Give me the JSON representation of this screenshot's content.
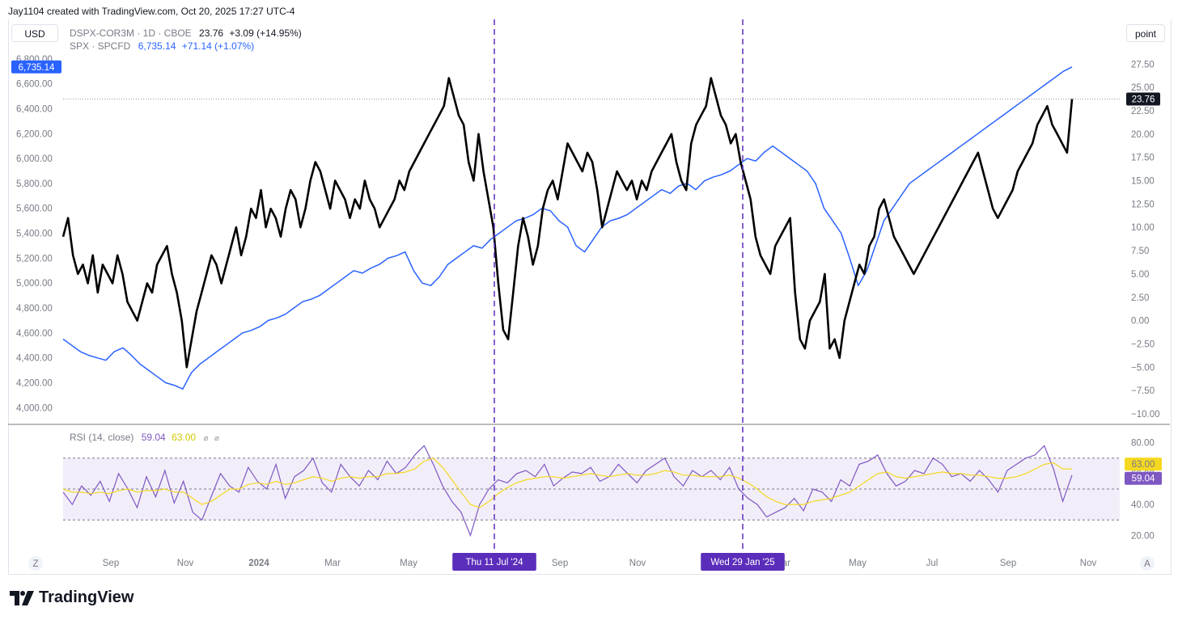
{
  "credit": "Jay1104 created with TradingView.com, Oct 20, 2025 17:27 UTC-4",
  "buttons": {
    "currency": "USD",
    "scale": "point",
    "zoom": "Z",
    "auto": "A"
  },
  "legend": {
    "series1": {
      "symbol": "DSPX-COR3M · 1D · CBOE",
      "value": "23.76",
      "change": "+3.09 (+14.95%)"
    },
    "series2": {
      "symbol": "SPX · SPCFD",
      "value": "6,735.14",
      "change": "+71.14 (+1.07%)"
    }
  },
  "rsi_legend": {
    "name": "RSI (14, close)",
    "value": "59.04",
    "ma": "63.00"
  },
  "logo_text": "TradingView",
  "colors": {
    "dspx": "#000000",
    "spx": "#2962ff",
    "rsi": "#7e57c2",
    "rsi_ma": "#f5d820",
    "marker": "#5b2dbb",
    "band": "#7e57c2"
  },
  "chart_data": [
    {
      "type": "line",
      "left_axis": {
        "ticks": [
          "6,800.00",
          "6,600.00",
          "6,400.00",
          "6,200.00",
          "6,000.00",
          "5,800.00",
          "5,600.00",
          "5,400.00",
          "5,200.00",
          "5,000.00",
          "4,800.00",
          "4,600.00",
          "4,400.00",
          "4,200.00",
          "4,000.00"
        ],
        "range": [
          3950,
          6870
        ]
      },
      "right_axis": {
        "ticks": [
          "27.50",
          "25.00",
          "22.50",
          "20.00",
          "17.50",
          "15.00",
          "12.50",
          "10.00",
          "7.50",
          "5.00",
          "2.50",
          "0.00",
          "−2.50",
          "−5.00",
          "−7.50",
          "−10.00"
        ],
        "range": [
          -10,
          29
        ]
      },
      "x_ticks": [
        "Sep",
        "Nov",
        "2024",
        "Mar",
        "May",
        "Sep",
        "Nov",
        "Mar",
        "May",
        "Jul",
        "Sep",
        "Nov"
      ],
      "markers": [
        "Thu 11 Jul '24",
        "Wed 29 Jan '25"
      ],
      "last_values": {
        "spx": "6,735.14",
        "dspx": "23.76"
      },
      "series": [
        {
          "name": "DSPX-COR3M",
          "axis": "right",
          "values": [
            9,
            11,
            7,
            5,
            6,
            4,
            7,
            3,
            6,
            5,
            4,
            7,
            5,
            2,
            1,
            0,
            2,
            4,
            3,
            6,
            7,
            8,
            5,
            3,
            0,
            -5,
            -2,
            1,
            3,
            5,
            7,
            6,
            4,
            6,
            8,
            10,
            7,
            9,
            12,
            11,
            14,
            10,
            12,
            11,
            9,
            12,
            14,
            13,
            10,
            12,
            15,
            17,
            16,
            14,
            12,
            15,
            14,
            13,
            11,
            13,
            12,
            15,
            13,
            12,
            10,
            11,
            12,
            13,
            15,
            14,
            16,
            17,
            18,
            19,
            20,
            21,
            22,
            23,
            26,
            24,
            22,
            21,
            17,
            15,
            20,
            16,
            13,
            10,
            4,
            -1,
            -2,
            3,
            8,
            11,
            9,
            6,
            8,
            12,
            14,
            15,
            13,
            16,
            19,
            18,
            17,
            16,
            18,
            17,
            14,
            10,
            12,
            14,
            16,
            15,
            14,
            15,
            13,
            15,
            14,
            16,
            17,
            18,
            19,
            20,
            17,
            15,
            14,
            19,
            21,
            22,
            23,
            26,
            24,
            22,
            21,
            19,
            20,
            17,
            15,
            13,
            9,
            7,
            6,
            5,
            8,
            9,
            10,
            11,
            3,
            -2,
            -3,
            0,
            1,
            2,
            5,
            -3,
            -2,
            -4,
            0,
            2,
            4,
            6,
            5,
            8,
            9,
            12,
            13,
            11,
            9,
            8,
            7,
            6,
            5,
            6,
            7,
            8,
            9,
            10,
            11,
            12,
            13,
            14,
            15,
            16,
            17,
            18,
            16,
            14,
            12,
            11,
            12,
            13,
            14,
            16,
            17,
            18,
            19,
            21,
            22,
            23,
            21,
            20,
            19,
            18,
            23.76
          ]
        },
        {
          "name": "SPX",
          "axis": "left",
          "values": [
            4550,
            4500,
            4450,
            4420,
            4400,
            4380,
            4450,
            4480,
            4420,
            4350,
            4300,
            4250,
            4200,
            4180,
            4150,
            4280,
            4350,
            4400,
            4450,
            4500,
            4550,
            4600,
            4620,
            4650,
            4700,
            4720,
            4750,
            4800,
            4850,
            4870,
            4900,
            4950,
            5000,
            5050,
            5100,
            5080,
            5120,
            5150,
            5200,
            5220,
            5250,
            5100,
            5000,
            4980,
            5050,
            5150,
            5200,
            5250,
            5300,
            5280,
            5350,
            5400,
            5450,
            5500,
            5520,
            5550,
            5600,
            5580,
            5500,
            5450,
            5300,
            5250,
            5350,
            5450,
            5500,
            5520,
            5550,
            5600,
            5650,
            5700,
            5750,
            5720,
            5780,
            5800,
            5750,
            5820,
            5850,
            5870,
            5900,
            5950,
            6000,
            5980,
            6050,
            6100,
            6050,
            6000,
            5950,
            5900,
            5800,
            5600,
            5500,
            5400,
            5200,
            4980,
            5100,
            5300,
            5500,
            5600,
            5700,
            5800,
            5850,
            5900,
            5950,
            6000,
            6050,
            6100,
            6150,
            6200,
            6250,
            6300,
            6350,
            6400,
            6450,
            6500,
            6550,
            6600,
            6650,
            6700,
            6735.14
          ]
        }
      ]
    },
    {
      "type": "line",
      "title": "RSI (14, close)",
      "y_ticks": [
        "80.00",
        "60.00",
        "40.00",
        "20.00"
      ],
      "ylim": [
        15,
        85
      ],
      "band": [
        30,
        70
      ],
      "last_values": {
        "ma": "63.00",
        "rsi": "59.04"
      },
      "series": [
        {
          "name": "RSI",
          "values": [
            48,
            40,
            52,
            46,
            55,
            42,
            60,
            50,
            38,
            58,
            45,
            62,
            41,
            55,
            35,
            30,
            45,
            60,
            52,
            48,
            64,
            55,
            50,
            66,
            44,
            58,
            62,
            70,
            54,
            48,
            66,
            58,
            52,
            62,
            56,
            68,
            60,
            64,
            72,
            78,
            66,
            52,
            42,
            35,
            20,
            40,
            50,
            56,
            54,
            60,
            62,
            58,
            66,
            52,
            57,
            61,
            60,
            64,
            55,
            58,
            66,
            60,
            54,
            62,
            66,
            70,
            58,
            52,
            62,
            58,
            62,
            56,
            64,
            50,
            44,
            40,
            32,
            35,
            38,
            44,
            36,
            50,
            48,
            42,
            56,
            52,
            66,
            68,
            72,
            60,
            52,
            55,
            62,
            60,
            70,
            66,
            58,
            60,
            55,
            62,
            56,
            48,
            62,
            66,
            70,
            72,
            78,
            63,
            42,
            59.04
          ]
        },
        {
          "name": "MA",
          "values": [
            50,
            48,
            48,
            47,
            48,
            47,
            49,
            50,
            48,
            49,
            49,
            50,
            48,
            48,
            44,
            40,
            42,
            46,
            50,
            50,
            53,
            54,
            53,
            55,
            53,
            54,
            56,
            58,
            57,
            55,
            57,
            58,
            57,
            58,
            58,
            60,
            60,
            61,
            63,
            68,
            70,
            64,
            56,
            48,
            40,
            38,
            42,
            47,
            51,
            54,
            56,
            57,
            58,
            58,
            57,
            58,
            59,
            60,
            59,
            58,
            59,
            60,
            59,
            59,
            60,
            62,
            61,
            59,
            59,
            58,
            58,
            58,
            59,
            57,
            54,
            50,
            45,
            42,
            40,
            40,
            40,
            42,
            43,
            44,
            46,
            48,
            52,
            56,
            60,
            61,
            58,
            57,
            58,
            59,
            60,
            61,
            60,
            60,
            59,
            59,
            58,
            57,
            57,
            58,
            60,
            63,
            66,
            67,
            63,
            63.0
          ]
        }
      ]
    }
  ]
}
